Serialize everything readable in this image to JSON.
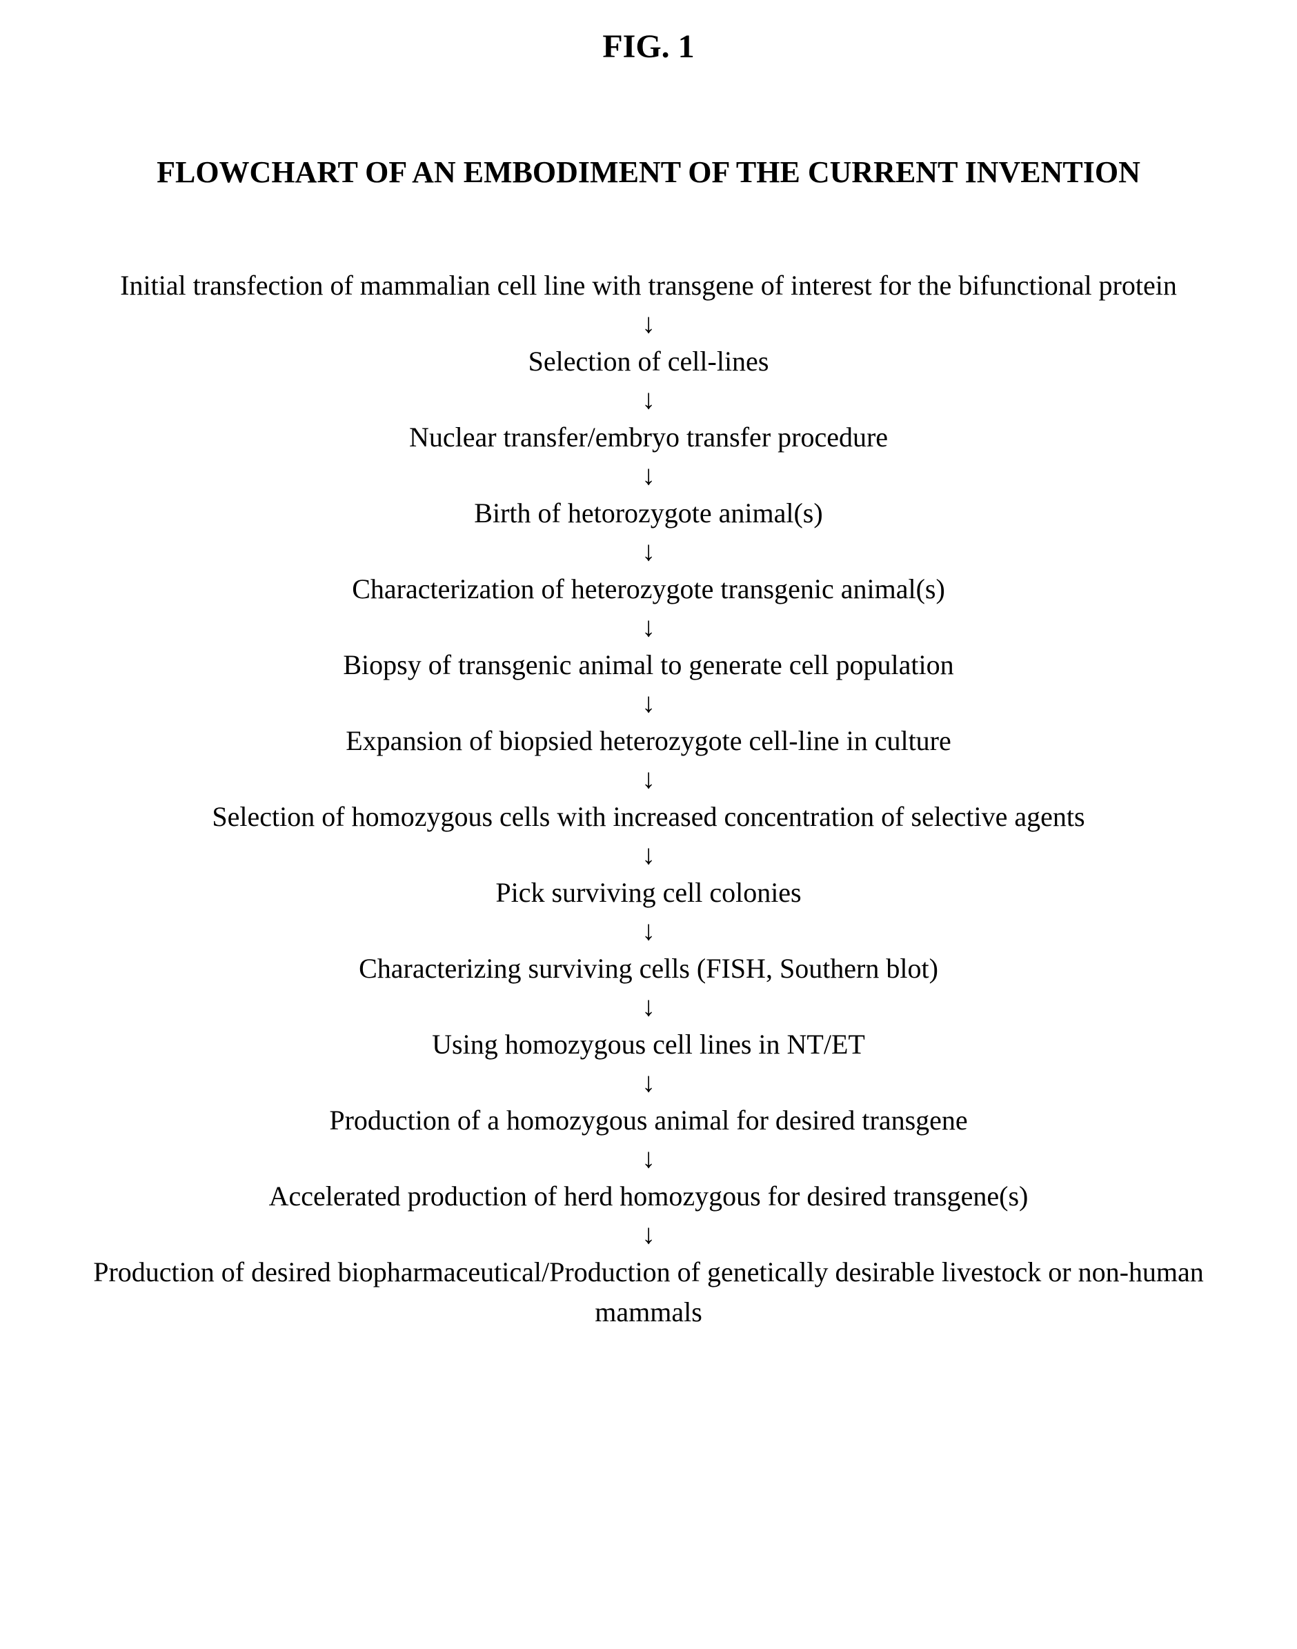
{
  "figure": {
    "label": "FIG.  1",
    "title": "FLOWCHART OF AN EMBODIMENT OF THE CURRENT INVENTION"
  },
  "flowchart": {
    "type": "flowchart",
    "arrow_glyph": "↓",
    "text_color": "#000000",
    "background_color": "#ffffff",
    "font_family": "Times New Roman",
    "title_fontsize_pt": 33,
    "step_fontsize_pt": 30,
    "steps": [
      "Initial transfection of mammalian cell line with transgene of interest for the bifunctional protein",
      "Selection of cell-lines",
      "Nuclear transfer/embryo transfer procedure",
      "Birth of hetorozygote animal(s)",
      "Characterization of heterozygote transgenic animal(s)",
      "Biopsy of transgenic animal to generate cell population",
      "Expansion of biopsied heterozygote cell-line in culture",
      "Selection of homozygous cells with increased concentration of selective agents",
      "Pick surviving cell colonies",
      "Characterizing surviving cells (FISH, Southern blot)",
      "Using homozygous cell lines in NT/ET",
      "Production of a homozygous animal for desired transgene",
      "Accelerated production of herd homozygous for desired transgene(s)",
      "Production of desired biopharmaceutical/Production of genetically desirable livestock or non-human mammals"
    ]
  }
}
